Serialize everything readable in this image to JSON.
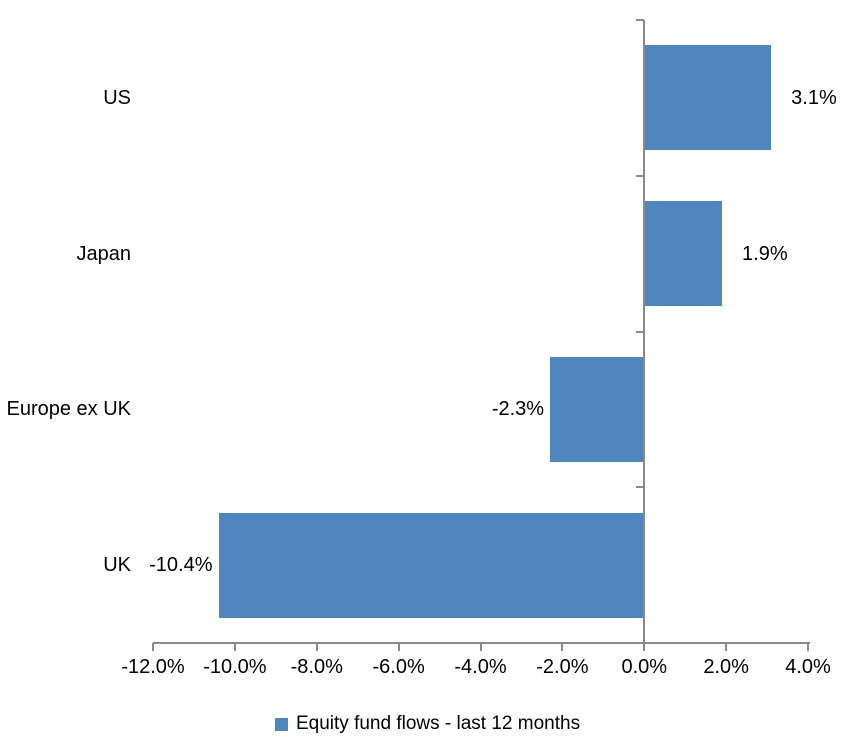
{
  "chart_data": {
    "type": "bar",
    "orientation": "horizontal",
    "categories": [
      "US",
      "Japan",
      "Europe ex UK",
      "UK"
    ],
    "values": [
      3.1,
      1.9,
      -2.3,
      -10.4
    ],
    "value_labels": [
      "3.1%",
      "1.9%",
      "-2.3%",
      "-10.4%"
    ],
    "legend": "Equity fund flows - last 12 months",
    "legend_position": "bottom-center",
    "xlim": [
      -12,
      4
    ],
    "x_ticks": {
      "values": [
        -12,
        -10,
        -8,
        -6,
        -4,
        -2,
        0,
        2,
        4
      ],
      "labels": [
        "-12.0%",
        "-10.0%",
        "-8.0%",
        "-6.0%",
        "-4.0%",
        "-2.0%",
        "0.0%",
        "2.0%",
        "4.0%"
      ]
    },
    "grid": false,
    "zero_axis_line": true,
    "colors": {
      "bar": "#4E86BD",
      "axis": "#898989",
      "text": "#000000"
    }
  }
}
